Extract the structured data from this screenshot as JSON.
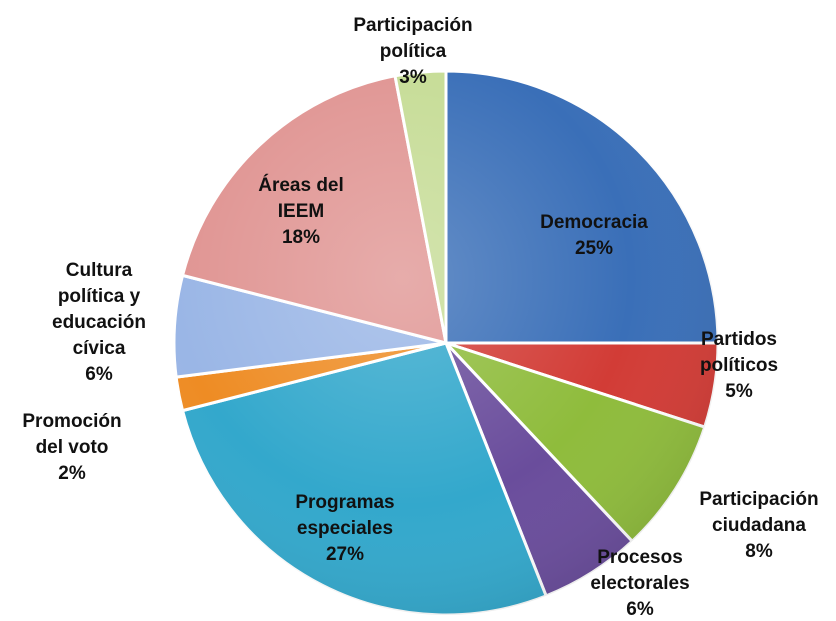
{
  "chart_data": {
    "type": "pie",
    "start": "top",
    "direction": "clockwise",
    "slices": [
      {
        "label": "Democracia",
        "value": 25,
        "display": "25%",
        "color": "#3a6fb8"
      },
      {
        "label": "Partidos políticos",
        "value": 5,
        "display": "5%",
        "color": "#d23c36"
      },
      {
        "label": "Participación ciudadana",
        "value": 8,
        "display": "8%",
        "color": "#8fbc3c"
      },
      {
        "label": "Procesos electorales",
        "value": 6,
        "display": "6%",
        "color": "#6a4d9c"
      },
      {
        "label": "Programas especiales",
        "value": 27,
        "display": "27%",
        "color": "#33a8cc"
      },
      {
        "label": "Promoción del voto",
        "value": 2,
        "display": "2%",
        "color": "#ee8c24"
      },
      {
        "label": "Cultura política y educación cívica",
        "value": 6,
        "display": "6%",
        "color": "#9ab6e6"
      },
      {
        "label": "Áreas del IEEM",
        "value": 18,
        "display": "18%",
        "color": "#e09593"
      },
      {
        "label": "Participación política",
        "value": 3,
        "display": "3%",
        "color": "#c6dc96"
      }
    ]
  }
}
